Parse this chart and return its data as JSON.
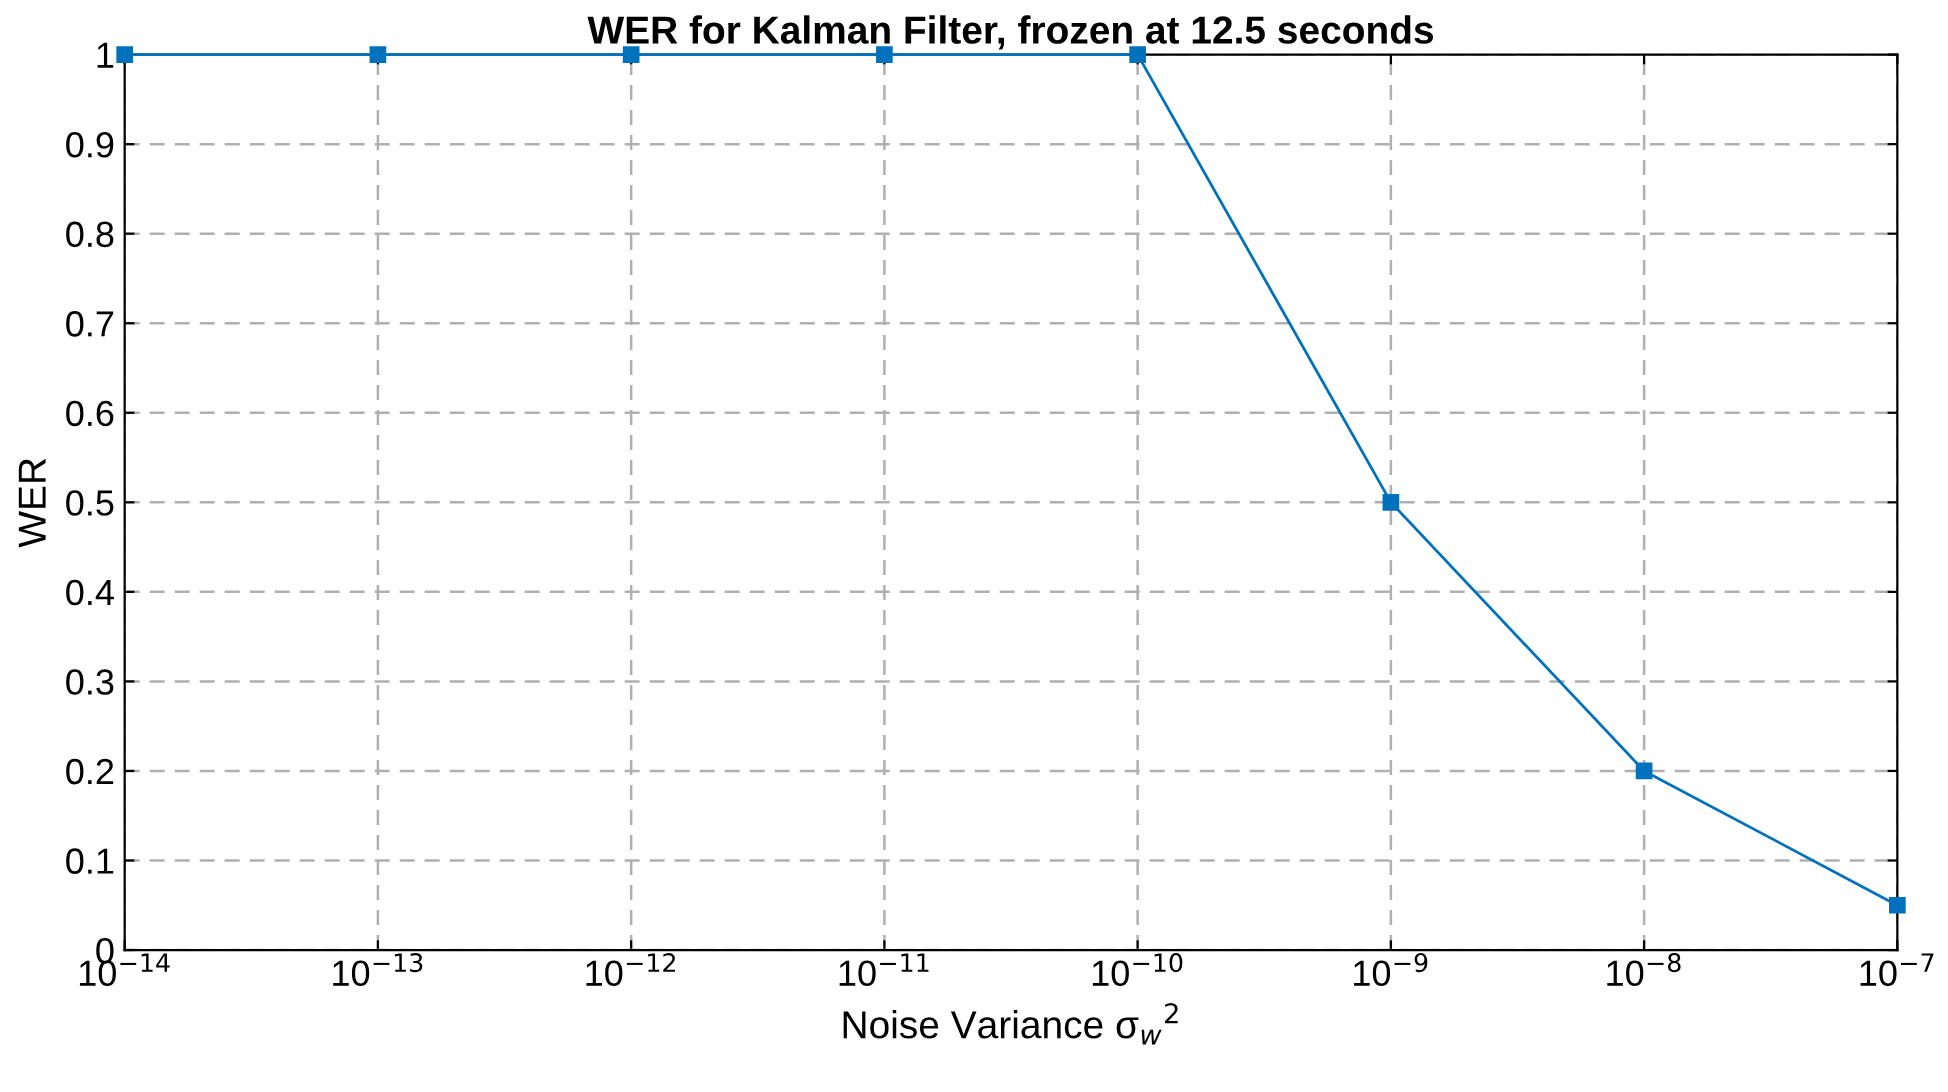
{
  "chart_data": {
    "type": "line",
    "title": "WER for Kalman Filter, frozen at 12.5 seconds",
    "xlabel": "Noise Variance σ$_{w}$$^{2}$",
    "ylabel": "WER",
    "x": [
      1e-14,
      1e-13,
      1e-12,
      1e-11,
      1e-10,
      1e-09,
      1e-08,
      1e-07
    ],
    "series": [
      {
        "color": "#0072bd",
        "values": [
          1,
          1,
          1,
          1,
          1,
          0.5,
          0.2,
          0.05
        ]
      }
    ],
    "log": "x",
    "xlim": [
      1e-14,
      1e-07
    ],
    "xticks": [
      {
        "value": 1e-14,
        "label": "10$^{−14}$"
      },
      {
        "value": 1e-13,
        "label": "10$^{−13}$"
      },
      {
        "value": 1e-12,
        "label": "10$^{−12}$"
      },
      {
        "value": 1e-11,
        "label": "10$^{−11}$"
      },
      {
        "value": 1e-10,
        "label": "10$^{−10}$"
      },
      {
        "value": 1e-09,
        "label": "10$^{−9}$"
      },
      {
        "value": 1e-08,
        "label": "10$^{−8}$"
      },
      {
        "value": 1e-07,
        "label": "10$^{−7}$"
      }
    ],
    "ylim": [
      0,
      1
    ],
    "yticks": [
      0,
      0.1,
      0.2,
      0.3,
      0.4,
      0.5,
      0.6,
      0.7,
      0.8,
      0.9,
      1
    ],
    "grid": true,
    "marker": "square",
    "line_style": "solid"
  }
}
